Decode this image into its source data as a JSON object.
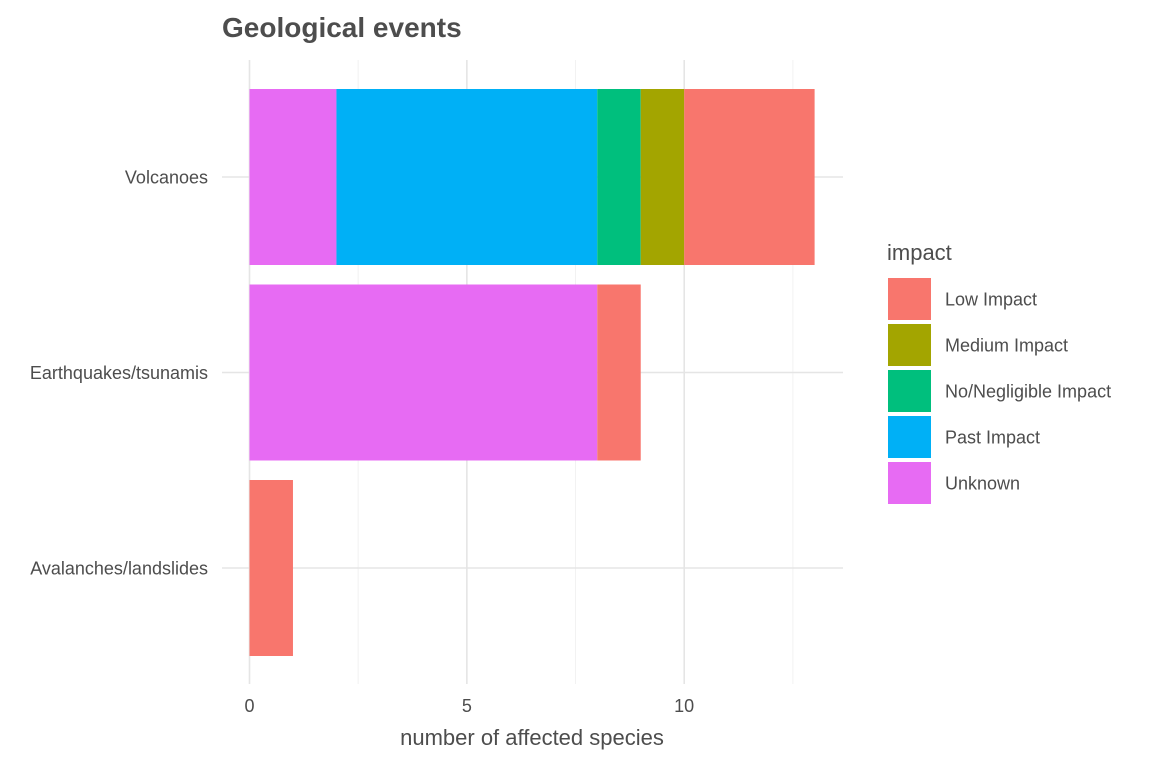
{
  "chart_data": {
    "type": "bar",
    "orientation": "horizontal",
    "stacked": true,
    "title": "Geological events",
    "xlabel": "number of affected species",
    "ylabel": "",
    "xlim": [
      0,
      13
    ],
    "xticks": [
      0,
      5,
      10
    ],
    "categories": [
      "Volcanoes",
      "Earthquakes/tsunamis",
      "Avalanches/landslides"
    ],
    "stack_order": [
      "Unknown",
      "Past Impact",
      "No/Negligible Impact",
      "Medium Impact",
      "Low Impact"
    ],
    "series": [
      {
        "name": "Low Impact",
        "color": "#F8766D",
        "values": [
          3,
          1,
          1
        ]
      },
      {
        "name": "Medium Impact",
        "color": "#A3A500",
        "values": [
          1,
          0,
          0
        ]
      },
      {
        "name": "No/Negligible Impact",
        "color": "#00BF7D",
        "values": [
          1,
          0,
          0
        ]
      },
      {
        "name": "Past Impact",
        "color": "#00B0F6",
        "values": [
          6,
          0,
          0
        ]
      },
      {
        "name": "Unknown",
        "color": "#E76BF3",
        "values": [
          2,
          8,
          0
        ]
      }
    ],
    "legend": {
      "title": "impact",
      "position": "right",
      "entries": [
        "Low Impact",
        "Medium Impact",
        "No/Negligible Impact",
        "Past Impact",
        "Unknown"
      ]
    },
    "grid": true
  }
}
